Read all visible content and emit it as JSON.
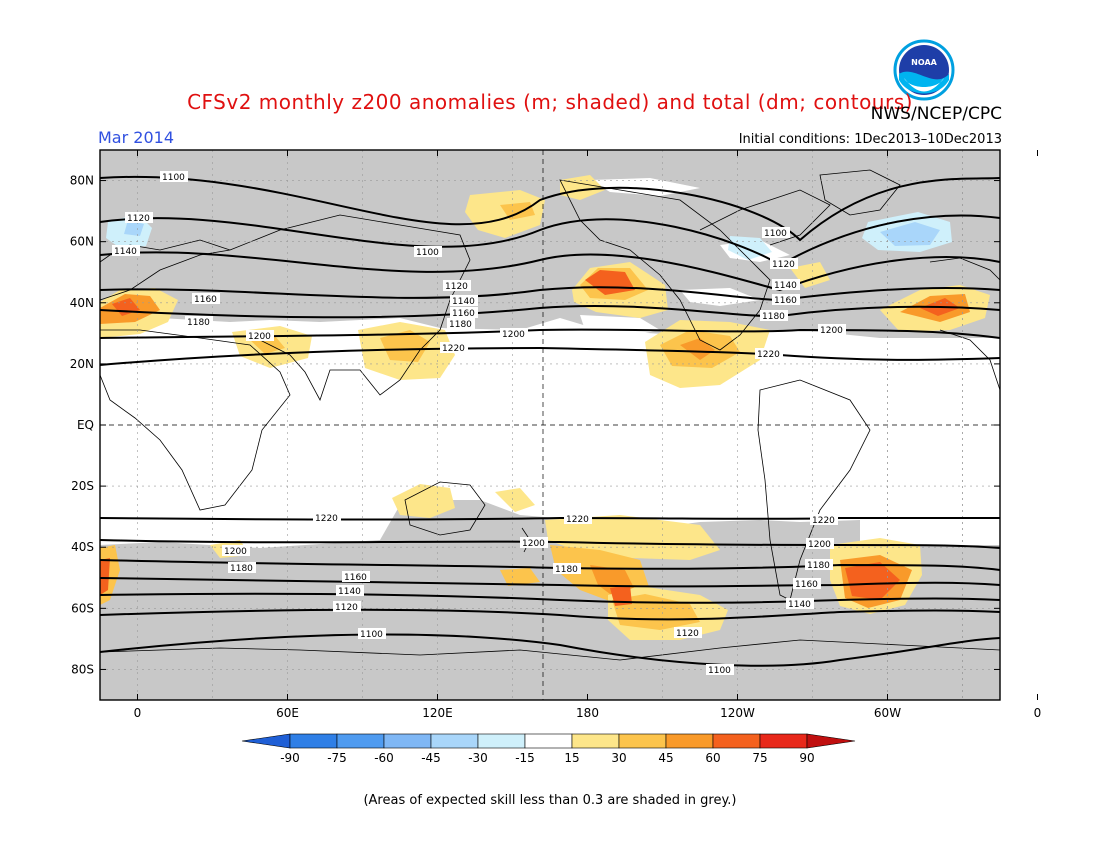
{
  "header": {
    "title": "CFSv2 monthly z200 anomalies (m; shaded) and total (dm; contours)",
    "org": "NWS/NCEP/CPC",
    "month": "Mar 2014",
    "initial_conditions": "Initial conditions: 1Dec2013–10Dec2013"
  },
  "footnote": "(Areas of expected skill less than 0.3 are shaded in grey.)",
  "map": {
    "lat_labels": [
      "80N",
      "60N",
      "40N",
      "20N",
      "EQ",
      "20S",
      "40S",
      "60S",
      "80S"
    ],
    "lon_labels": [
      "0",
      "60E",
      "120E",
      "180",
      "120W",
      "60W",
      "0"
    ],
    "colors": {
      "skill_grey": "#c8c8c8",
      "nh_contour": "#000000"
    },
    "contour_labels": [
      "1100",
      "1120",
      "1140",
      "1160",
      "1180",
      "1200",
      "1220"
    ]
  },
  "colorbar": {
    "labels": [
      "-90",
      "-75",
      "-60",
      "-45",
      "-30",
      "-15",
      "15",
      "30",
      "45",
      "60",
      "75",
      "90"
    ],
    "colors": [
      "#1f5fd6",
      "#2f7fe6",
      "#4f9bf0",
      "#7fb7f5",
      "#a9d6fa",
      "#cff0fb",
      "#ffffff",
      "#fde68a",
      "#fcc44c",
      "#f99a2a",
      "#f4611e",
      "#e8281a",
      "#c00f0f"
    ]
  },
  "logo": {
    "text": "NOAA"
  }
}
